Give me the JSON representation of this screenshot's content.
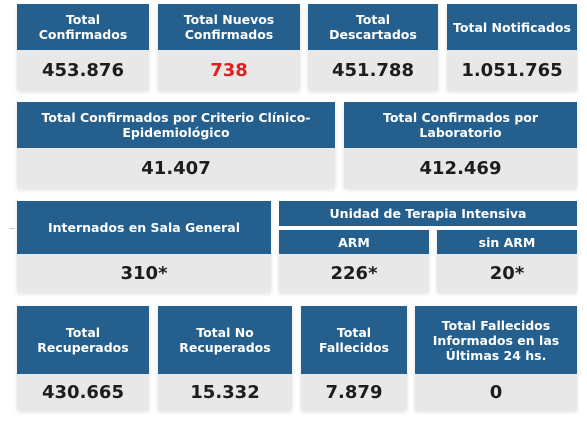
{
  "row1": [
    {
      "label": "Total\nConfirmados",
      "value": "453.876"
    },
    {
      "label": "Total Nuevos\nConfirmados",
      "value": "738"
    },
    {
      "label": "Total\nDescartados",
      "value": "451.788"
    },
    {
      "label": "Total Notificados",
      "value": "1.051.765"
    }
  ],
  "row2": [
    {
      "label": "Total Confirmados por Criterio Clínico-\nEpidemiológico",
      "value": "41.407"
    },
    {
      "label": "Total Confirmados por\nLaboratorio",
      "value": "412.469"
    }
  ],
  "row3": {
    "general": {
      "label": "Internados en Sala General",
      "value": "310*"
    },
    "uti_title": "Unidad de Terapia Intensiva",
    "arm": {
      "label": "ARM",
      "value": "226*"
    },
    "sin_arm": {
      "label": "sin ARM",
      "value": "20*"
    }
  },
  "row4": [
    {
      "label": "Total\nRecuperados",
      "value": "430.665"
    },
    {
      "label": "Total No\nRecuperados",
      "value": "15.332"
    },
    {
      "label": "Total\nFallecidos",
      "value": "7.879"
    },
    {
      "label": "Total Fallecidos\nInformados en las\nÚltimas 24 hs.",
      "value": "0"
    }
  ],
  "colors": {
    "header": "#245f8e",
    "value_bg": "#e8e8e8",
    "highlight": "#e02020"
  }
}
